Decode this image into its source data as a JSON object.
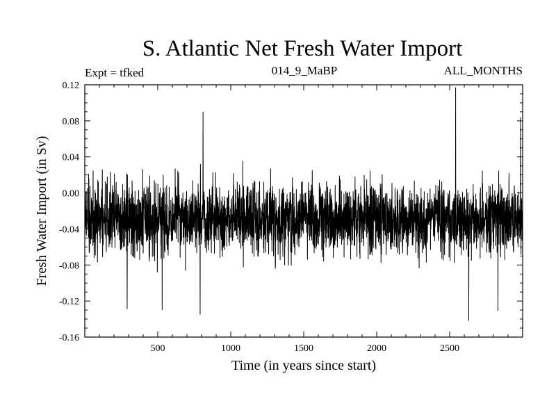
{
  "chart_data": {
    "type": "line",
    "title": "S. Atlantic Net Fresh Water Import",
    "subtitle_left": "Expt = tfked",
    "subtitle_center": "014_9_MaBP",
    "subtitle_right": "ALL_MONTHS",
    "xlabel": "Time (in years since start)",
    "ylabel": "Fresh Water Import (in Sv)",
    "xlim": [
      0,
      3000
    ],
    "ylim": [
      -0.16,
      0.12
    ],
    "xticks": [
      500,
      1000,
      1500,
      2000,
      2500
    ],
    "xtick_labels": [
      "500",
      "1000",
      "1500",
      "2000",
      "2500"
    ],
    "yticks": [
      -0.16,
      -0.12,
      -0.08,
      -0.04,
      0.0,
      0.04,
      0.08,
      0.12
    ],
    "ytick_labels": [
      "-0.16",
      "-0.12",
      "-0.08",
      "-0.04",
      "0.00",
      "0.04",
      "0.08",
      "0.12"
    ],
    "grid": false,
    "legend": "none",
    "line_color": "#000000",
    "series_summary": {
      "n_points": 3000,
      "mean": -0.028,
      "typical_min": -0.09,
      "typical_max": 0.03
    },
    "notable_points": [
      {
        "x": 810,
        "y": 0.09
      },
      {
        "x": 2540,
        "y": 0.117
      },
      {
        "x": 2985,
        "y": 0.084
      },
      {
        "x": 290,
        "y": -0.129
      },
      {
        "x": 530,
        "y": -0.13
      },
      {
        "x": 790,
        "y": -0.135
      },
      {
        "x": 2630,
        "y": -0.142
      },
      {
        "x": 2830,
        "y": -0.131
      }
    ]
  }
}
